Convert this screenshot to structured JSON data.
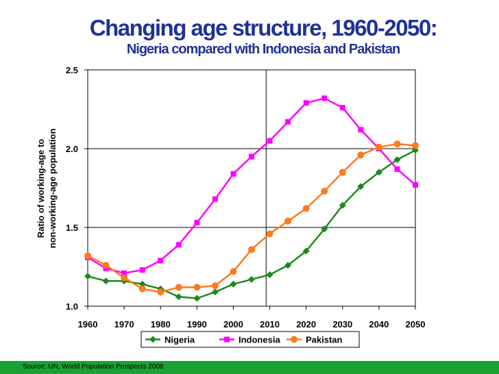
{
  "header": {
    "title": "Changing age structure, 1960-2050:",
    "subtitle": "Nigeria compared with Indonesia and Pakistan"
  },
  "footer": {
    "source": "Source: UN, World Population Prospects 2008"
  },
  "colors": {
    "title": "#1f3296",
    "footer_bg": "#19a232",
    "nigeria": "#1a8a1a",
    "indonesia": "#ff00ff",
    "pakistan": "#ff7a1a"
  },
  "chart_data": {
    "type": "line",
    "title": "",
    "xlabel": "",
    "ylabel_lines": [
      "Ratio of working-age to",
      "non-working-age population"
    ],
    "x": [
      1960,
      1965,
      1970,
      1975,
      1980,
      1985,
      1990,
      1995,
      2000,
      2005,
      2010,
      2015,
      2020,
      2025,
      2030,
      2035,
      2040,
      2045,
      2050
    ],
    "xticks": [
      "1960",
      "1970",
      "1980",
      "1990",
      "2000",
      "2010",
      "2020",
      "2030",
      "2040",
      "2050"
    ],
    "yticks": [
      "1.0",
      "1.5",
      "2.0",
      "2.5"
    ],
    "ylim": [
      1.0,
      2.5
    ],
    "xlim": [
      1960,
      2050
    ],
    "vertical_marker": 2009,
    "legend_position": "bottom",
    "series": [
      {
        "name": "Nigeria",
        "color": "#1a8a1a",
        "marker": "diamond",
        "values": [
          1.19,
          1.16,
          1.16,
          1.14,
          1.11,
          1.06,
          1.05,
          1.09,
          1.14,
          1.17,
          1.2,
          1.26,
          1.35,
          1.49,
          1.64,
          1.76,
          1.85,
          1.93,
          1.99
        ]
      },
      {
        "name": "Indonesia",
        "color": "#ff00ff",
        "marker": "square",
        "values": [
          1.31,
          1.24,
          1.21,
          1.23,
          1.29,
          1.39,
          1.53,
          1.68,
          1.84,
          1.95,
          2.05,
          2.17,
          2.29,
          2.32,
          2.26,
          2.12,
          2.0,
          1.87,
          1.77
        ]
      },
      {
        "name": "Pakistan",
        "color": "#ff7a1a",
        "marker": "circle",
        "values": [
          1.32,
          1.26,
          1.18,
          1.11,
          1.09,
          1.12,
          1.12,
          1.13,
          1.22,
          1.36,
          1.46,
          1.54,
          1.62,
          1.73,
          1.85,
          1.96,
          2.01,
          2.03,
          2.02
        ]
      }
    ]
  }
}
